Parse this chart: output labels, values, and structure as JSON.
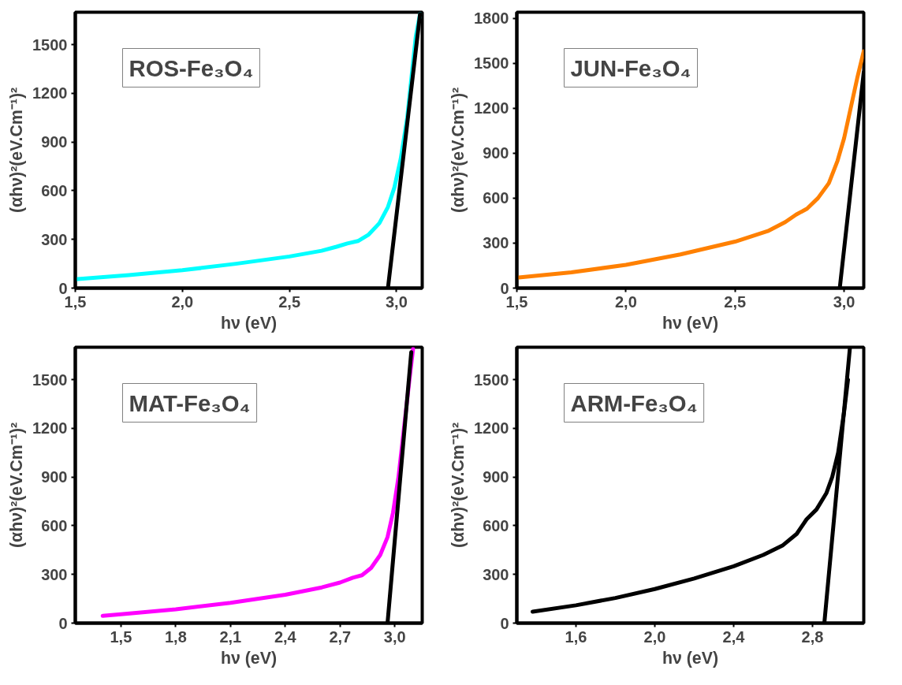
{
  "chart_data": [
    {
      "type": "line",
      "xlabel": "hν (eV)",
      "ylabel": "(αhν)²(eV.Cm⁻¹)²",
      "annotations": [
        "ROS-Fe₃O₄"
      ],
      "xlim": [
        1.5,
        3.12
      ],
      "ylim": [
        0,
        1700
      ],
      "xticks": [
        {
          "value": 1.5,
          "label": "1,5"
        },
        {
          "value": 2.0,
          "label": "2,0"
        },
        {
          "value": 2.5,
          "label": "2,5"
        },
        {
          "value": 3.0,
          "label": "3,0"
        }
      ],
      "yticks": [
        0,
        300,
        600,
        900,
        1200,
        1500
      ],
      "grid": false,
      "series": [
        {
          "color": "#00ffff",
          "x": [
            1.5,
            1.75,
            2.0,
            2.25,
            2.5,
            2.65,
            2.72,
            2.77,
            2.82,
            2.87,
            2.92,
            2.96,
            2.99,
            3.02,
            3.05,
            3.07,
            3.09,
            3.11
          ],
          "values": [
            55,
            80,
            110,
            150,
            195,
            230,
            255,
            275,
            290,
            330,
            400,
            500,
            620,
            800,
            1050,
            1300,
            1550,
            1690
          ]
        },
        {
          "color": "#000000",
          "x": [
            2.96,
            3.11
          ],
          "values": [
            0,
            1690
          ]
        }
      ]
    },
    {
      "type": "line",
      "xlabel": "hν (eV)",
      "ylabel": "(αhν)²(eV.Cm⁻¹)²",
      "annotations": [
        "JUN-Fe₃O₄"
      ],
      "xlim": [
        1.5,
        3.09
      ],
      "ylim": [
        0,
        1840
      ],
      "xticks": [
        {
          "value": 1.5,
          "label": "1,5"
        },
        {
          "value": 2.0,
          "label": "2,0"
        },
        {
          "value": 2.5,
          "label": "2,5"
        },
        {
          "value": 3.0,
          "label": "3,0"
        }
      ],
      "yticks": [
        0,
        300,
        600,
        900,
        1200,
        1500,
        1800
      ],
      "grid": false,
      "series": [
        {
          "color": "#ff8000",
          "x": [
            1.5,
            1.75,
            2.0,
            2.25,
            2.5,
            2.65,
            2.73,
            2.78,
            2.83,
            2.88,
            2.93,
            2.97,
            3.0,
            3.03,
            3.06,
            3.09
          ],
          "values": [
            70,
            105,
            155,
            225,
            310,
            380,
            440,
            490,
            530,
            600,
            700,
            850,
            1000,
            1200,
            1400,
            1580
          ]
        },
        {
          "color": "#000000",
          "x": [
            2.98,
            3.09
          ],
          "values": [
            0,
            1440
          ]
        }
      ]
    },
    {
      "type": "line",
      "xlabel": "hν (eV)",
      "ylabel": "(αhν)²(eV.Cm⁻¹)²",
      "annotations": [
        "MAT-Fe₃O₄"
      ],
      "xlim": [
        1.25,
        3.15
      ],
      "ylim": [
        0,
        1700
      ],
      "xticks": [
        {
          "value": 1.5,
          "label": "1,5"
        },
        {
          "value": 1.8,
          "label": "1,8"
        },
        {
          "value": 2.1,
          "label": "2,1"
        },
        {
          "value": 2.4,
          "label": "2,4"
        },
        {
          "value": 2.7,
          "label": "2,7"
        },
        {
          "value": 3.0,
          "label": "3,0"
        }
      ],
      "yticks": [
        0,
        300,
        600,
        900,
        1200,
        1500
      ],
      "grid": false,
      "series": [
        {
          "color": "#ff00ff",
          "x": [
            1.4,
            1.5,
            1.8,
            2.1,
            2.4,
            2.6,
            2.7,
            2.77,
            2.82,
            2.87,
            2.92,
            2.96,
            2.99,
            3.02,
            3.05,
            3.08,
            3.1
          ],
          "values": [
            45,
            55,
            85,
            125,
            175,
            220,
            250,
            280,
            295,
            340,
            420,
            530,
            680,
            900,
            1200,
            1500,
            1690
          ]
        },
        {
          "color": "#000000",
          "x": [
            2.96,
            3.09
          ],
          "values": [
            0,
            1670
          ]
        }
      ]
    },
    {
      "type": "line",
      "xlabel": "hν (eV)",
      "ylabel": "(αhν)²(eV.Cm⁻¹)²",
      "annotations": [
        "ARM-Fe₃O₄"
      ],
      "xlim": [
        1.3,
        3.06
      ],
      "ylim": [
        0,
        1700
      ],
      "xticks": [
        {
          "value": 1.6,
          "label": "1,6"
        },
        {
          "value": 2.0,
          "label": "2,0"
        },
        {
          "value": 2.4,
          "label": "2,4"
        },
        {
          "value": 2.8,
          "label": "2,8"
        }
      ],
      "yticks": [
        0,
        300,
        600,
        900,
        1200,
        1500
      ],
      "grid": false,
      "series": [
        {
          "color": "#000000",
          "x": [
            1.38,
            1.6,
            1.8,
            2.0,
            2.2,
            2.4,
            2.55,
            2.65,
            2.72,
            2.77,
            2.82,
            2.87,
            2.9,
            2.93,
            2.96,
            2.98
          ],
          "values": [
            70,
            110,
            155,
            210,
            275,
            350,
            420,
            480,
            550,
            640,
            700,
            800,
            900,
            1050,
            1300,
            1500
          ]
        },
        {
          "color": "#000000",
          "x": [
            2.86,
            2.99
          ],
          "values": [
            0,
            1700
          ]
        }
      ]
    }
  ]
}
